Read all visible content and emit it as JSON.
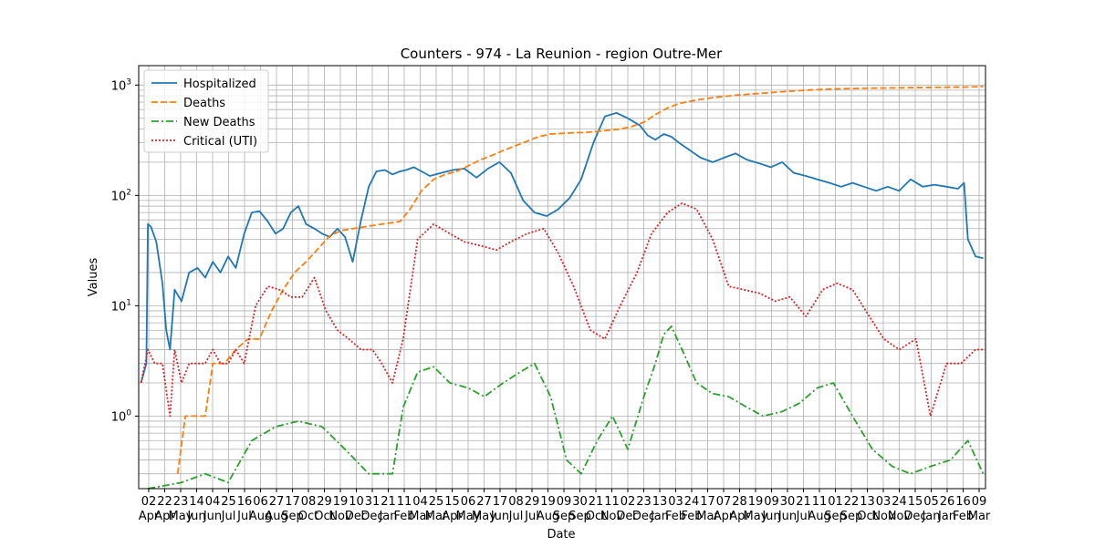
{
  "chart_data": {
    "type": "line",
    "title": "Counters - 974 - La Reunion - region Outre-Mer",
    "xlabel": "Date",
    "ylabel": "Values",
    "yscale": "log",
    "ylim": [
      0.22,
      1500
    ],
    "grid": "on (major and minor)",
    "legend_position": "top-left",
    "x_tick_labels": [
      {
        "day": "02",
        "month": "Apr"
      },
      {
        "day": "22",
        "month": "Apr"
      },
      {
        "day": "23",
        "month": "May"
      },
      {
        "day": "14",
        "month": "Jun"
      },
      {
        "day": "04",
        "month": "Jun"
      },
      {
        "day": "25",
        "month": "Jul"
      },
      {
        "day": "16",
        "month": "Jul"
      },
      {
        "day": "06",
        "month": "Aug"
      },
      {
        "day": "27",
        "month": "Aug"
      },
      {
        "day": "17",
        "month": "Sep"
      },
      {
        "day": "08",
        "month": "Oct"
      },
      {
        "day": "29",
        "month": "Oct"
      },
      {
        "day": "19",
        "month": "Nov"
      },
      {
        "day": "10",
        "month": "Dec"
      },
      {
        "day": "31",
        "month": "Dec"
      },
      {
        "day": "21",
        "month": "Jan"
      },
      {
        "day": "11",
        "month": "Feb"
      },
      {
        "day": "04",
        "month": "Mar"
      },
      {
        "day": "25",
        "month": "Mar"
      },
      {
        "day": "15",
        "month": "Apr"
      },
      {
        "day": "06",
        "month": "May"
      },
      {
        "day": "27",
        "month": "May"
      },
      {
        "day": "17",
        "month": "Jun"
      },
      {
        "day": "08",
        "month": "Jul"
      },
      {
        "day": "29",
        "month": "Jul"
      },
      {
        "day": "19",
        "month": "Aug"
      },
      {
        "day": "09",
        "month": "Sep"
      },
      {
        "day": "30",
        "month": "Sep"
      },
      {
        "day": "21",
        "month": "Oct"
      },
      {
        "day": "11",
        "month": "Nov"
      },
      {
        "day": "02",
        "month": "Dec"
      },
      {
        "day": "23",
        "month": "Dec"
      },
      {
        "day": "13",
        "month": "Jan"
      },
      {
        "day": "03",
        "month": "Feb"
      },
      {
        "day": "24",
        "month": "Feb"
      },
      {
        "day": "17",
        "month": "Mar"
      },
      {
        "day": "07",
        "month": "Apr"
      },
      {
        "day": "28",
        "month": "Apr"
      },
      {
        "day": "19",
        "month": "May"
      },
      {
        "day": "09",
        "month": "Jun"
      },
      {
        "day": "30",
        "month": "Jun"
      },
      {
        "day": "21",
        "month": "Jul"
      },
      {
        "day": "11",
        "month": "Aug"
      },
      {
        "day": "01",
        "month": "Sep"
      },
      {
        "day": "22",
        "month": "Sep"
      },
      {
        "day": "13",
        "month": "Oct"
      },
      {
        "day": "03",
        "month": "Nov"
      },
      {
        "day": "24",
        "month": "Nov"
      },
      {
        "day": "15",
        "month": "Dec"
      },
      {
        "day": "05",
        "month": "Jan"
      },
      {
        "day": "26",
        "month": "Jan"
      },
      {
        "day": "16",
        "month": "Feb"
      },
      {
        "day": "09",
        "month": "Mar"
      },
      {
        "day": "30",
        "month": "Mar"
      }
    ],
    "y_tick_labels": [
      {
        "base": "10",
        "exp": "0",
        "value": 1
      },
      {
        "base": "10",
        "exp": "1",
        "value": 10
      },
      {
        "base": "10",
        "exp": "2",
        "value": 100
      },
      {
        "base": "10",
        "exp": "3",
        "value": 1000
      }
    ],
    "series": [
      {
        "name": "Hospitalized",
        "color": "#1f77b4",
        "dash": "solid",
        "x": [
          "2020-03-23",
          "2020-03-30",
          "2020-04-01",
          "2020-04-05",
          "2020-04-12",
          "2020-04-20",
          "2020-04-25",
          "2020-04-30",
          "2020-05-06",
          "2020-05-15",
          "2020-05-25",
          "2020-06-05",
          "2020-06-15",
          "2020-06-25",
          "2020-07-05",
          "2020-07-15",
          "2020-07-25",
          "2020-08-05",
          "2020-08-15",
          "2020-08-25",
          "2020-09-05",
          "2020-09-15",
          "2020-09-25",
          "2020-10-05",
          "2020-10-15",
          "2020-10-25",
          "2020-11-05",
          "2020-11-15",
          "2020-11-25",
          "2020-12-05",
          "2020-12-15",
          "2020-12-25",
          "2021-01-05",
          "2021-01-15",
          "2021-01-25",
          "2021-02-05",
          "2021-02-15",
          "2021-02-25",
          "2021-03-05",
          "2021-03-15",
          "2021-03-25",
          "2021-04-05",
          "2021-04-20",
          "2021-05-05",
          "2021-05-20",
          "2021-06-05",
          "2021-06-20",
          "2021-07-05",
          "2021-07-20",
          "2021-08-05",
          "2021-08-20",
          "2021-09-05",
          "2021-09-20",
          "2021-10-05",
          "2021-10-20",
          "2021-11-05",
          "2021-11-20",
          "2021-12-05",
          "2021-12-20",
          "2022-01-05",
          "2022-01-15",
          "2022-01-25",
          "2022-02-05",
          "2022-02-15",
          "2022-02-25",
          "2022-03-10",
          "2022-03-25",
          "2022-04-10",
          "2022-04-25",
          "2022-05-10",
          "2022-05-25",
          "2022-06-10",
          "2022-06-25",
          "2022-07-10",
          "2022-07-25",
          "2022-08-10",
          "2022-08-25",
          "2022-09-10",
          "2022-09-25",
          "2022-10-10",
          "2022-10-25",
          "2022-11-10",
          "2022-11-25",
          "2022-12-10",
          "2022-12-25",
          "2023-01-10",
          "2023-01-25",
          "2023-02-10",
          "2023-02-25",
          "2023-03-05",
          "2023-03-10",
          "2023-03-20",
          "2023-03-30"
        ],
        "values": [
          2,
          3,
          55,
          52,
          38,
          16,
          6,
          4,
          14,
          11,
          20,
          22,
          18,
          25,
          20,
          28,
          22,
          45,
          70,
          72,
          58,
          45,
          50,
          70,
          80,
          55,
          50,
          45,
          42,
          50,
          42,
          25,
          60,
          120,
          165,
          170,
          155,
          165,
          170,
          180,
          165,
          150,
          160,
          170,
          175,
          145,
          175,
          200,
          160,
          90,
          70,
          65,
          75,
          95,
          140,
          300,
          520,
          560,
          500,
          430,
          350,
          320,
          360,
          340,
          300,
          260,
          220,
          200,
          220,
          240,
          210,
          195,
          180,
          200,
          160,
          150,
          140,
          130,
          120,
          130,
          120,
          110,
          120,
          110,
          140,
          120,
          125,
          120,
          115,
          130,
          40,
          28,
          27
        ]
      },
      {
        "name": "Deaths",
        "color": "#ff7f0e",
        "dash": "dashed",
        "x": [
          "2020-05-10",
          "2020-05-20",
          "2020-06-01",
          "2020-06-15",
          "2020-06-25",
          "2020-07-10",
          "2020-07-25",
          "2020-08-10",
          "2020-08-25",
          "2020-09-10",
          "2020-09-25",
          "2020-10-10",
          "2020-10-25",
          "2020-11-10",
          "2020-11-25",
          "2020-12-10",
          "2020-12-25",
          "2021-01-10",
          "2021-01-25",
          "2021-02-10",
          "2021-02-25",
          "2021-03-10",
          "2021-03-25",
          "2021-04-10",
          "2021-04-25",
          "2021-05-10",
          "2021-05-25",
          "2021-06-10",
          "2021-06-25",
          "2021-07-10",
          "2021-07-25",
          "2021-08-10",
          "2021-08-25",
          "2021-09-10",
          "2021-09-25",
          "2021-10-10",
          "2021-10-25",
          "2021-11-10",
          "2021-11-25",
          "2021-12-10",
          "2021-12-25",
          "2022-01-10",
          "2022-01-25",
          "2022-02-10",
          "2022-02-25",
          "2022-03-10",
          "2022-03-25",
          "2022-04-10",
          "2022-05-10",
          "2022-06-10",
          "2022-07-10",
          "2022-08-10",
          "2022-09-10",
          "2022-10-10",
          "2022-11-10",
          "2022-12-10",
          "2023-01-10",
          "2023-02-10",
          "2023-03-10",
          "2023-03-30"
        ],
        "values": [
          0.3,
          1,
          1,
          1,
          3,
          3,
          4,
          5,
          5,
          9,
          14,
          20,
          25,
          33,
          43,
          48,
          50,
          52,
          54,
          56,
          58,
          75,
          110,
          140,
          155,
          165,
          185,
          210,
          230,
          255,
          280,
          310,
          340,
          360,
          365,
          370,
          372,
          380,
          390,
          400,
          420,
          460,
          540,
          620,
          680,
          710,
          740,
          770,
          810,
          840,
          870,
          900,
          920,
          930,
          940,
          945,
          950,
          955,
          960,
          970
        ]
      },
      {
        "name": "New Deaths",
        "color": "#2ca02c",
        "dash": "dashdot",
        "x": [
          "2020-04-01",
          "2020-05-15",
          "2020-06-15",
          "2020-07-15",
          "2020-08-15",
          "2020-09-15",
          "2020-10-15",
          "2020-11-15",
          "2020-12-15",
          "2021-01-15",
          "2021-02-15",
          "2021-03-01",
          "2021-03-20",
          "2021-04-10",
          "2021-05-01",
          "2021-05-25",
          "2021-06-15",
          "2021-07-10",
          "2021-08-01",
          "2021-08-20",
          "2021-09-10",
          "2021-10-01",
          "2021-10-20",
          "2021-11-10",
          "2021-11-30",
          "2021-12-20",
          "2022-01-10",
          "2022-01-25",
          "2022-02-05",
          "2022-02-15",
          "2022-03-01",
          "2022-03-20",
          "2022-04-10",
          "2022-05-01",
          "2022-05-25",
          "2022-06-15",
          "2022-07-10",
          "2022-08-01",
          "2022-08-25",
          "2022-09-15",
          "2022-10-10",
          "2022-11-05",
          "2022-12-01",
          "2022-12-25",
          "2023-01-20",
          "2023-02-15",
          "2023-03-10",
          "2023-03-30"
        ],
        "values": [
          0.2,
          0.25,
          0.3,
          0.25,
          0.6,
          0.8,
          0.9,
          0.8,
          0.5,
          0.3,
          0.3,
          1.2,
          2.5,
          2.8,
          2.0,
          1.8,
          1.5,
          2.0,
          2.5,
          3.0,
          1.5,
          0.4,
          0.3,
          0.6,
          1.0,
          0.5,
          1.5,
          3.0,
          5.5,
          6.5,
          4.0,
          2.0,
          1.6,
          1.5,
          1.2,
          1.0,
          1.1,
          1.3,
          1.8,
          2.0,
          1.0,
          0.5,
          0.35,
          0.3,
          0.35,
          0.4,
          0.6,
          0.3
        ]
      },
      {
        "name": "Critical (UTI)",
        "color": "#d62728",
        "dash": "dotted",
        "x": [
          "2020-03-23",
          "2020-04-01",
          "2020-04-10",
          "2020-04-20",
          "2020-04-30",
          "2020-05-06",
          "2020-05-15",
          "2020-05-25",
          "2020-06-05",
          "2020-06-15",
          "2020-06-25",
          "2020-07-05",
          "2020-07-15",
          "2020-07-25",
          "2020-08-05",
          "2020-08-20",
          "2020-09-05",
          "2020-09-20",
          "2020-10-05",
          "2020-10-20",
          "2020-11-05",
          "2020-11-20",
          "2020-12-05",
          "2020-12-20",
          "2021-01-05",
          "2021-01-20",
          "2021-02-01",
          "2021-02-15",
          "2021-03-01",
          "2021-03-20",
          "2021-04-10",
          "2021-05-01",
          "2021-05-20",
          "2021-06-10",
          "2021-07-01",
          "2021-07-20",
          "2021-08-10",
          "2021-09-01",
          "2021-09-20",
          "2021-10-10",
          "2021-11-01",
          "2021-11-20",
          "2021-12-10",
          "2022-01-01",
          "2022-01-20",
          "2022-02-10",
          "2022-03-01",
          "2022-03-20",
          "2022-04-10",
          "2022-05-01",
          "2022-05-20",
          "2022-06-10",
          "2022-07-01",
          "2022-07-20",
          "2022-08-10",
          "2022-09-01",
          "2022-09-20",
          "2022-10-10",
          "2022-11-01",
          "2022-11-20",
          "2022-12-10",
          "2023-01-01",
          "2023-01-20",
          "2023-02-10",
          "2023-03-01",
          "2023-03-20",
          "2023-03-30"
        ],
        "values": [
          2,
          4,
          3,
          3,
          1,
          4,
          2,
          3,
          3,
          3,
          4,
          3,
          3,
          4,
          3,
          10,
          15,
          14,
          12,
          12,
          18,
          9,
          6,
          5,
          4,
          4,
          3,
          2,
          5,
          40,
          55,
          45,
          38,
          35,
          32,
          38,
          45,
          50,
          30,
          15,
          6,
          5,
          10,
          20,
          45,
          70,
          85,
          75,
          40,
          15,
          14,
          13,
          11,
          12,
          8,
          14,
          16,
          14,
          8,
          5,
          4,
          5,
          1,
          3,
          3,
          4,
          4
        ]
      }
    ]
  },
  "legend": {
    "items": [
      {
        "label": "Hospitalized",
        "color": "#1f77b4",
        "dash": "solid"
      },
      {
        "label": "Deaths",
        "color": "#ff7f0e",
        "dash": "dashed"
      },
      {
        "label": "New Deaths",
        "color": "#2ca02c",
        "dash": "dashdot"
      },
      {
        "label": "Critical (UTI)",
        "color": "#d62728",
        "dash": "dotted"
      }
    ]
  }
}
